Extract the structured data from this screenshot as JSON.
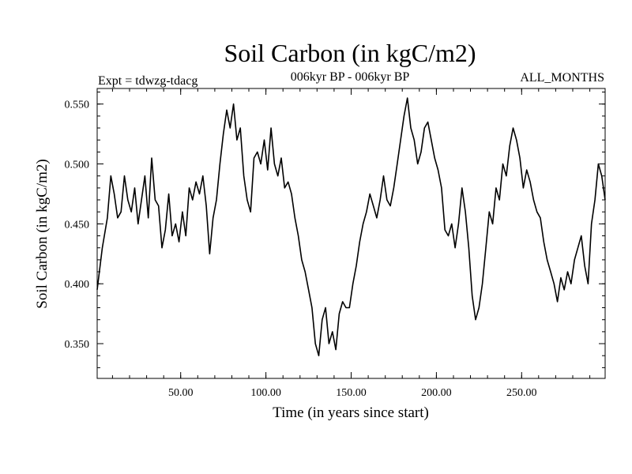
{
  "chart_data": {
    "type": "line",
    "title": "Soil Carbon (in kgC/m2)",
    "subtitle_left": "Expt = tdwzg-tdacg",
    "subtitle_center": "006kyr BP - 006kyr BP",
    "subtitle_right": "ALL_MONTHS",
    "xlabel": "Time (in years since start)",
    "ylabel": "Soil Carbon (in kgC/m2)",
    "xlim": [
      1,
      299
    ],
    "ylim": [
      0.321,
      0.563
    ],
    "x_ticks": [
      50,
      100,
      150,
      200,
      250
    ],
    "x_tick_labels": [
      "50.00",
      "100.00",
      "150.00",
      "200.00",
      "250.00"
    ],
    "x_minor_step": 10,
    "y_ticks": [
      0.35,
      0.4,
      0.45,
      0.5,
      0.55
    ],
    "y_tick_labels": [
      "0.350",
      "0.400",
      "0.450",
      "0.500",
      "0.550"
    ],
    "y_minor_step": 0.01,
    "series": [
      {
        "name": "Soil Carbon",
        "color": "#000000",
        "x": [
          1,
          4,
          7,
          9,
          11,
          13,
          15,
          17,
          19,
          21,
          23,
          25,
          27,
          29,
          31,
          33,
          35,
          37,
          39,
          41,
          43,
          45,
          47,
          49,
          51,
          53,
          55,
          57,
          59,
          61,
          63,
          65,
          67,
          69,
          71,
          73,
          75,
          77,
          79,
          81,
          83,
          85,
          87,
          89,
          91,
          93,
          95,
          97,
          99,
          101,
          103,
          105,
          107,
          109,
          111,
          113,
          115,
          117,
          119,
          121,
          123,
          125,
          127,
          129,
          131,
          133,
          135,
          137,
          139,
          141,
          143,
          145,
          147,
          149,
          151,
          153,
          155,
          157,
          159,
          161,
          163,
          165,
          167,
          169,
          171,
          173,
          175,
          177,
          179,
          181,
          183,
          185,
          187,
          189,
          191,
          193,
          195,
          197,
          199,
          201,
          203,
          205,
          207,
          209,
          211,
          213,
          215,
          217,
          219,
          221,
          223,
          225,
          227,
          229,
          231,
          233,
          235,
          237,
          239,
          241,
          243,
          245,
          247,
          249,
          251,
          253,
          255,
          257,
          259,
          261,
          263,
          265,
          267,
          269,
          271,
          273,
          275,
          277,
          279,
          281,
          283,
          285,
          287,
          289,
          291,
          293,
          295,
          297,
          299
        ],
        "values": [
          0.395,
          0.43,
          0.455,
          0.49,
          0.475,
          0.455,
          0.46,
          0.49,
          0.47,
          0.46,
          0.48,
          0.45,
          0.47,
          0.49,
          0.455,
          0.505,
          0.47,
          0.465,
          0.43,
          0.445,
          0.475,
          0.44,
          0.45,
          0.435,
          0.46,
          0.44,
          0.48,
          0.47,
          0.485,
          0.475,
          0.49,
          0.465,
          0.425,
          0.455,
          0.47,
          0.5,
          0.525,
          0.545,
          0.53,
          0.55,
          0.52,
          0.53,
          0.49,
          0.47,
          0.46,
          0.505,
          0.51,
          0.5,
          0.52,
          0.495,
          0.53,
          0.5,
          0.49,
          0.505,
          0.48,
          0.485,
          0.475,
          0.455,
          0.44,
          0.42,
          0.41,
          0.395,
          0.38,
          0.35,
          0.34,
          0.37,
          0.38,
          0.35,
          0.36,
          0.345,
          0.375,
          0.385,
          0.38,
          0.38,
          0.4,
          0.415,
          0.435,
          0.45,
          0.46,
          0.475,
          0.465,
          0.455,
          0.47,
          0.49,
          0.47,
          0.465,
          0.48,
          0.5,
          0.52,
          0.54,
          0.555,
          0.53,
          0.52,
          0.5,
          0.51,
          0.53,
          0.535,
          0.52,
          0.505,
          0.495,
          0.48,
          0.445,
          0.44,
          0.45,
          0.43,
          0.45,
          0.48,
          0.46,
          0.43,
          0.39,
          0.37,
          0.38,
          0.4,
          0.43,
          0.46,
          0.45,
          0.48,
          0.47,
          0.5,
          0.49,
          0.515,
          0.53,
          0.52,
          0.505,
          0.48,
          0.495,
          0.485,
          0.47,
          0.46,
          0.455,
          0.435,
          0.42,
          0.41,
          0.4,
          0.385,
          0.405,
          0.395,
          0.41,
          0.4,
          0.42,
          0.43,
          0.44,
          0.415,
          0.4,
          0.45,
          0.47,
          0.5,
          0.49,
          0.47
        ]
      }
    ]
  }
}
